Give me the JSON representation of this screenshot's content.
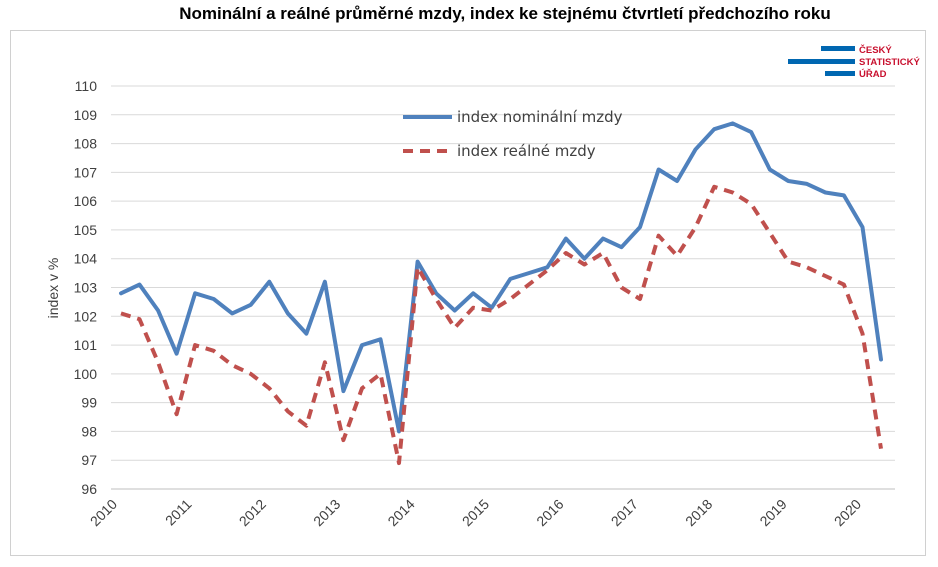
{
  "logo": {
    "lines": [
      "ČESKÝ",
      "STATISTICKÝ",
      "ÚŘAD"
    ],
    "bar_color": "#0067b1",
    "text_color": "#c8102e"
  },
  "chart_data": {
    "type": "line",
    "title": "Nominální a reálné průměrné mzdy, index ke stejnému čtvrtletí předchozího roku",
    "xlabel": "",
    "ylabel": "index v %",
    "ylim": [
      96,
      110
    ],
    "yticks": [
      96,
      97,
      98,
      99,
      100,
      101,
      102,
      103,
      104,
      105,
      106,
      107,
      108,
      109,
      110
    ],
    "xticks": [
      "2010",
      "2011",
      "2012",
      "2013",
      "2014",
      "2015",
      "2016",
      "2017",
      "2018",
      "2019",
      "2020"
    ],
    "grid": "horizontal",
    "legend_position": "top-center",
    "x": [
      "2010Q1",
      "2010Q2",
      "2010Q3",
      "2010Q4",
      "2011Q1",
      "2011Q2",
      "2011Q3",
      "2011Q4",
      "2012Q1",
      "2012Q2",
      "2012Q3",
      "2012Q4",
      "2013Q1",
      "2013Q2",
      "2013Q3",
      "2013Q4",
      "2014Q1",
      "2014Q2",
      "2014Q3",
      "2014Q4",
      "2015Q1",
      "2015Q2",
      "2015Q3",
      "2015Q4",
      "2016Q1",
      "2016Q2",
      "2016Q3",
      "2016Q4",
      "2017Q1",
      "2017Q2",
      "2017Q3",
      "2017Q4",
      "2018Q1",
      "2018Q2",
      "2018Q3",
      "2018Q4",
      "2019Q1",
      "2019Q2",
      "2019Q3",
      "2019Q4",
      "2020Q1",
      "2020Q2"
    ],
    "series": [
      {
        "name": "index nominální mzdy",
        "color": "#4f81bd",
        "style": "solid",
        "values": [
          102.8,
          103.1,
          102.2,
          100.7,
          102.8,
          102.6,
          102.1,
          102.4,
          103.2,
          102.1,
          101.4,
          103.2,
          99.4,
          101.0,
          101.2,
          98.0,
          103.9,
          102.8,
          102.2,
          102.8,
          102.3,
          103.3,
          103.5,
          103.7,
          104.7,
          104.0,
          104.7,
          104.4,
          105.1,
          107.1,
          106.7,
          107.8,
          108.5,
          108.7,
          108.4,
          107.1,
          106.7,
          106.6,
          106.3,
          106.2,
          105.1,
          100.5
        ]
      },
      {
        "name": "index reálné mzdy",
        "color": "#c0504d",
        "style": "dashed",
        "values": [
          102.1,
          101.9,
          100.4,
          98.6,
          101.0,
          100.8,
          100.3,
          100.0,
          99.5,
          98.7,
          98.2,
          100.4,
          97.7,
          99.5,
          100.0,
          96.9,
          103.7,
          102.6,
          101.6,
          102.3,
          102.2,
          102.6,
          103.1,
          103.6,
          104.2,
          103.8,
          104.2,
          103.0,
          102.6,
          104.8,
          104.1,
          105.1,
          106.5,
          106.3,
          105.9,
          104.9,
          103.9,
          103.7,
          103.4,
          103.1,
          101.4,
          97.4
        ]
      }
    ]
  }
}
